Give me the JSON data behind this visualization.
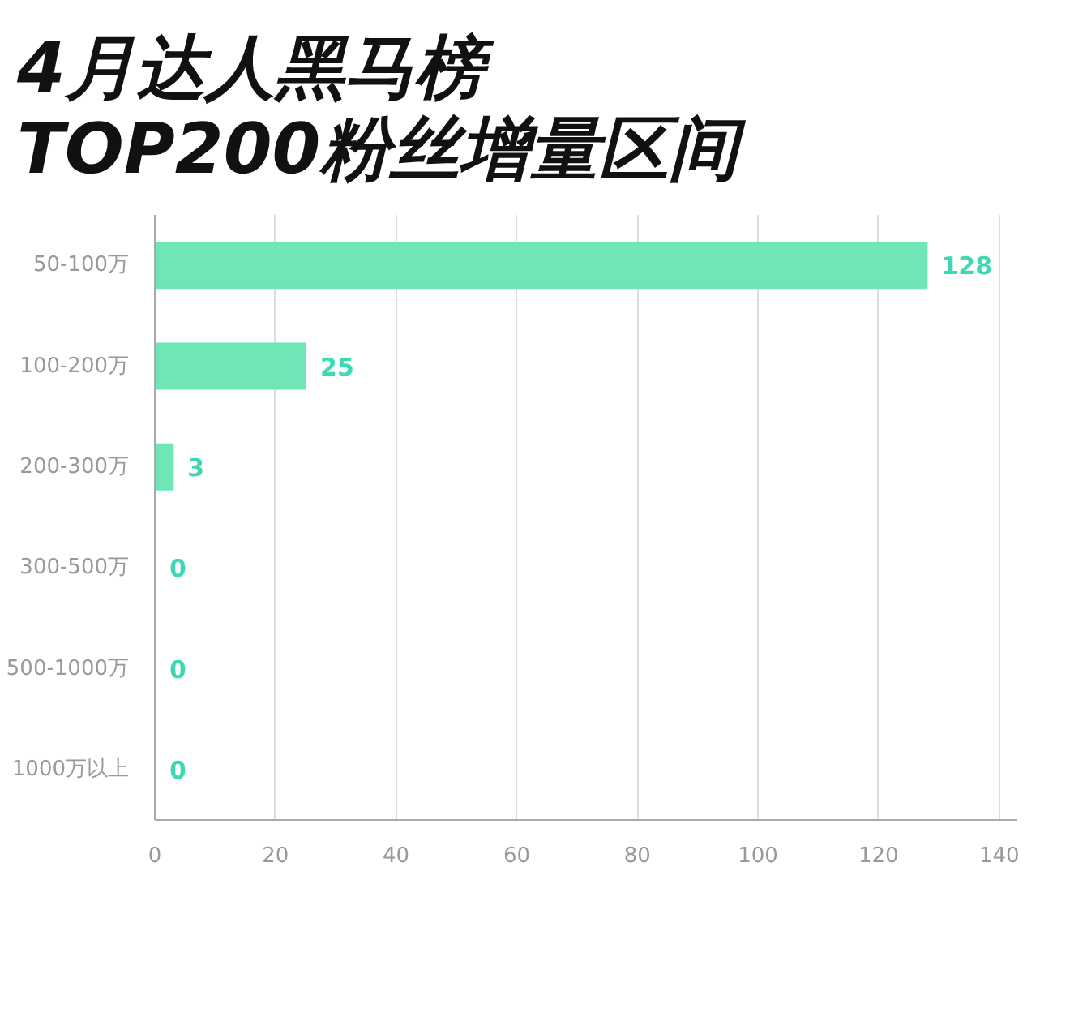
{
  "chart_data": {
    "type": "bar",
    "orientation": "horizontal",
    "title": "4月达人黑马榜\nTOP200粉丝增量区间",
    "categories": [
      "50-100万",
      "100-200万",
      "200-300万",
      "300-500万",
      "500-1000万",
      "1000万以上"
    ],
    "values": [
      128,
      25,
      3,
      0,
      0,
      0
    ],
    "color": "#6ee6b6",
    "xlim": [
      0,
      143
    ],
    "xticks": [
      0,
      20,
      40,
      60,
      80,
      100,
      120,
      140
    ],
    "grid": "x",
    "data_labels": true
  }
}
